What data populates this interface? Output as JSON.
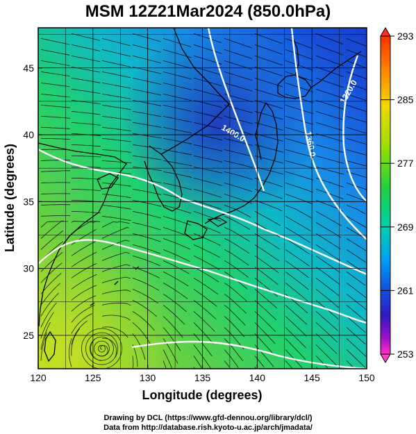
{
  "title": "MSM 12Z21Mar2024 (850.0hPa)",
  "map": {
    "x_axis": {
      "label": "Longitude (degrees)",
      "ticks": [
        "120",
        "125",
        "130",
        "135",
        "140",
        "145",
        "150"
      ]
    },
    "y_axis": {
      "label": "Latitude  (degrees)",
      "ticks": [
        "25",
        "30",
        "35",
        "40",
        "45"
      ]
    },
    "contour_labels": [
      "1400.0",
      "1360.0",
      "1320.0"
    ],
    "colorbar": {
      "ticks": [
        "293",
        "285",
        "277",
        "269",
        "261",
        "253"
      ],
      "colors": [
        "#ff0000",
        "#ff6a00",
        "#ffb400",
        "#f0e000",
        "#a8e000",
        "#30d000",
        "#00d070",
        "#00d0c0",
        "#00a8f0",
        "#0070f0",
        "#1030d0",
        "#4010c0",
        "#a010c0",
        "#ff20c0"
      ]
    },
    "colors": {
      "warm": "#9ad030",
      "mid": "#20d070",
      "cool": "#1070e0",
      "cold": "#1840c8",
      "coast": "#000000",
      "contour": "#ffffff",
      "stream": "#000000"
    }
  },
  "credits": {
    "line1": "Drawing by DCL (https://www.gfd-dennou.org/library/dcl/)",
    "line2": "Data from http://database.rish.kyoto-u.ac.jp/arch/jmadata/"
  }
}
